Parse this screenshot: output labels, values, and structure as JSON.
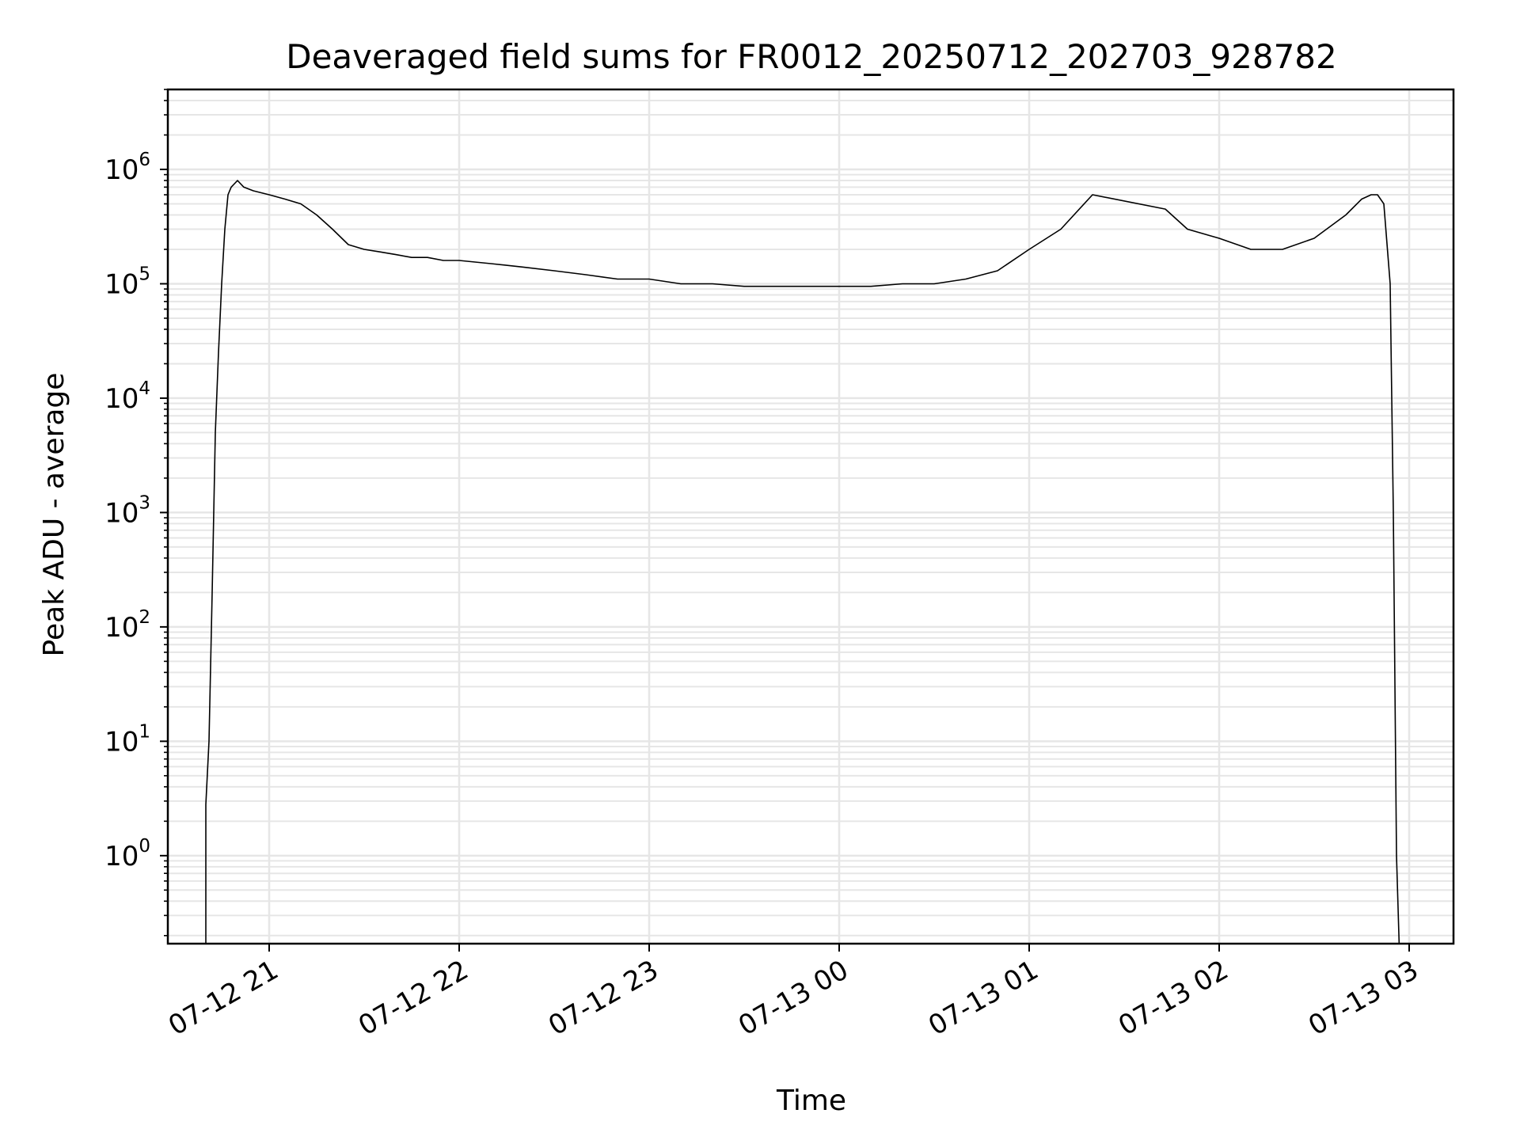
{
  "chart_data": {
    "type": "line",
    "title": "Deaveraged field sums for FR0012_20250712_202703_928782",
    "xlabel": "Time",
    "ylabel": "Peak ADU - average",
    "yscale": "log",
    "grid": true,
    "line_color": "#000000",
    "grid_color": "#e6e6e6",
    "xlim": [
      "2025-07-12 20:28",
      "2025-07-13 03:14"
    ],
    "ylim": [
      0.17,
      5000000
    ],
    "x_ticks": [
      {
        "value": "2025-07-12 21:00",
        "label": "07-12 21"
      },
      {
        "value": "2025-07-12 22:00",
        "label": "07-12 22"
      },
      {
        "value": "2025-07-12 23:00",
        "label": "07-12 23"
      },
      {
        "value": "2025-07-13 00:00",
        "label": "07-13 00"
      },
      {
        "value": "2025-07-13 01:00",
        "label": "07-13 01"
      },
      {
        "value": "2025-07-13 02:00",
        "label": "07-13 02"
      },
      {
        "value": "2025-07-13 03:00",
        "label": "07-13 03"
      }
    ],
    "y_ticks": [
      {
        "value": 1,
        "base": "10",
        "exp": "0"
      },
      {
        "value": 10,
        "base": "10",
        "exp": "1"
      },
      {
        "value": 100,
        "base": "10",
        "exp": "2"
      },
      {
        "value": 1000,
        "base": "10",
        "exp": "3"
      },
      {
        "value": 10000,
        "base": "10",
        "exp": "4"
      },
      {
        "value": 100000,
        "base": "10",
        "exp": "5"
      },
      {
        "value": 1000000,
        "base": "10",
        "exp": "6"
      }
    ],
    "series": [
      {
        "x": [
          "2025-07-12 20:40",
          "2025-07-12 20:40",
          "2025-07-12 20:41",
          "2025-07-12 20:42",
          "2025-07-12 20:43",
          "2025-07-12 20:44",
          "2025-07-12 20:45",
          "2025-07-12 20:46",
          "2025-07-12 20:47",
          "2025-07-12 20:48",
          "2025-07-12 20:50",
          "2025-07-12 20:52",
          "2025-07-12 20:55",
          "2025-07-12 21:00",
          "2025-07-12 21:05",
          "2025-07-12 21:10",
          "2025-07-12 21:15",
          "2025-07-12 21:20",
          "2025-07-12 21:25",
          "2025-07-12 21:30",
          "2025-07-12 21:35",
          "2025-07-12 21:40",
          "2025-07-12 21:45",
          "2025-07-12 21:50",
          "2025-07-12 21:55",
          "2025-07-12 22:00",
          "2025-07-12 22:10",
          "2025-07-12 22:20",
          "2025-07-12 22:30",
          "2025-07-12 22:40",
          "2025-07-12 22:50",
          "2025-07-12 23:00",
          "2025-07-12 23:10",
          "2025-07-12 23:20",
          "2025-07-12 23:30",
          "2025-07-12 23:40",
          "2025-07-12 23:50",
          "2025-07-13 00:00",
          "2025-07-13 00:10",
          "2025-07-13 00:20",
          "2025-07-13 00:30",
          "2025-07-13 00:40",
          "2025-07-13 00:50",
          "2025-07-13 01:00",
          "2025-07-13 01:10",
          "2025-07-13 01:20",
          "2025-07-13 01:43",
          "2025-07-13 01:50",
          "2025-07-13 02:00",
          "2025-07-13 02:10",
          "2025-07-13 02:20",
          "2025-07-13 02:30",
          "2025-07-13 02:40",
          "2025-07-13 02:45",
          "2025-07-13 02:48",
          "2025-07-13 02:50",
          "2025-07-13 02:52",
          "2025-07-13 02:54",
          "2025-07-13 02:55",
          "2025-07-13 02:56",
          "2025-07-13 02:57"
        ],
        "y": [
          0.12,
          2.8,
          10,
          200,
          5000,
          25000,
          100000,
          300000,
          600000,
          700000,
          800000,
          700000,
          650000,
          600000,
          550000,
          500000,
          400000,
          300000,
          220000,
          200000,
          190000,
          180000,
          170000,
          170000,
          160000,
          160000,
          150000,
          140000,
          130000,
          120000,
          110000,
          110000,
          100000,
          100000,
          95000,
          95000,
          95000,
          95000,
          95000,
          100000,
          100000,
          110000,
          130000,
          200000,
          300000,
          600000,
          450000,
          300000,
          250000,
          200000,
          200000,
          250000,
          400000,
          550000,
          600000,
          600000,
          500000,
          100000,
          1000,
          1,
          0.12
        ]
      }
    ]
  }
}
